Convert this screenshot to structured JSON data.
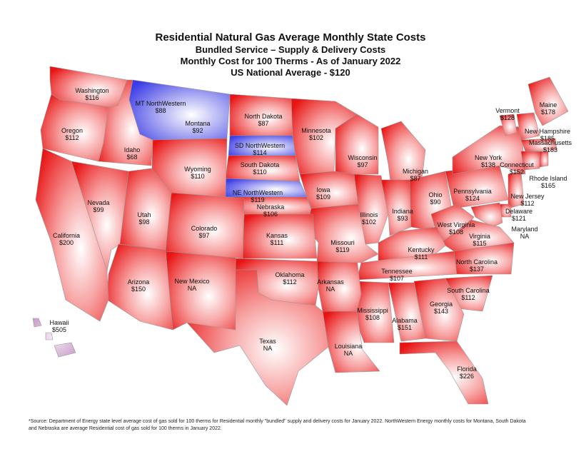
{
  "title": {
    "line1": "Residential Natural Gas Average Monthly State Costs",
    "line2": "Bundled Service – Supply & Delivery Costs",
    "line3": "Monthly Cost for 100 Therms - As of January 2022",
    "line4": "US National Average - $120"
  },
  "colors": {
    "state_cost": "#e81414",
    "northwestern": "#3a3ae6",
    "hawaii": "#d9b6d9"
  },
  "regions": [
    {
      "id": "washington",
      "name": "Washington",
      "value": "$116"
    },
    {
      "id": "oregon",
      "name": "Oregon",
      "value": "$112"
    },
    {
      "id": "idaho",
      "name": "Idaho",
      "value": "$68"
    },
    {
      "id": "mt-northwestern",
      "name": "MT NorthWestern",
      "value": "$88"
    },
    {
      "id": "montana",
      "name": "Montana",
      "value": "$92"
    },
    {
      "id": "north-dakota",
      "name": "North Dakota",
      "value": "$87"
    },
    {
      "id": "sd-northwestern",
      "name": "SD NorthWestern",
      "value": "$114"
    },
    {
      "id": "south-dakota",
      "name": "South Dakota",
      "value": "$110"
    },
    {
      "id": "ne-northwestern",
      "name": "NE NorthWestern",
      "value": "$119"
    },
    {
      "id": "nebraska",
      "name": "Nebraska",
      "value": "$106"
    },
    {
      "id": "minnesota",
      "name": "Minnesota",
      "value": "$102"
    },
    {
      "id": "wisconsin",
      "name": "Wisconsin",
      "value": "$97"
    },
    {
      "id": "michigan",
      "name": "Michigan",
      "value": "$87"
    },
    {
      "id": "wyoming",
      "name": "Wyoming",
      "value": "$110"
    },
    {
      "id": "iowa",
      "name": "Iowa",
      "value": "$109"
    },
    {
      "id": "illinois",
      "name": "Illinois",
      "value": "$102"
    },
    {
      "id": "indiana",
      "name": "Indiana",
      "value": "$93"
    },
    {
      "id": "ohio",
      "name": "Ohio",
      "value": "$90"
    },
    {
      "id": "pennsylvania",
      "name": "Pennsylvania",
      "value": "$124"
    },
    {
      "id": "new-york",
      "name": "New York",
      "value": "$138"
    },
    {
      "id": "vermont",
      "name": "Vermont",
      "value": "$128"
    },
    {
      "id": "maine",
      "name": "Maine",
      "value": "$178"
    },
    {
      "id": "new-hampshire",
      "name": "New Hampshire",
      "value": "$185"
    },
    {
      "id": "massachusetts",
      "name": "Massachusetts",
      "value": "$183"
    },
    {
      "id": "connecticut",
      "name": "Connecticut",
      "value": "$152"
    },
    {
      "id": "rhode-island",
      "name": "Rhode Island",
      "value": "$165"
    },
    {
      "id": "new-jersey",
      "name": "New Jersey",
      "value": "$112"
    },
    {
      "id": "delaware",
      "name": "Delaware",
      "value": "$121"
    },
    {
      "id": "maryland",
      "name": "Maryland",
      "value": "NA"
    },
    {
      "id": "nevada",
      "name": "Nevada",
      "value": "$99"
    },
    {
      "id": "utah",
      "name": "Utah",
      "value": "$98"
    },
    {
      "id": "colorado",
      "name": "Colorado",
      "value": "$97"
    },
    {
      "id": "kansas",
      "name": "Kansas",
      "value": "$111"
    },
    {
      "id": "missouri",
      "name": "Missouri",
      "value": "$119"
    },
    {
      "id": "kentucky",
      "name": "Kentucky",
      "value": "$111"
    },
    {
      "id": "west-virginia",
      "name": "West Virginia",
      "value": "$108"
    },
    {
      "id": "virginia",
      "name": "Virginia",
      "value": "$115"
    },
    {
      "id": "california",
      "name": "California",
      "value": "$200"
    },
    {
      "id": "arizona",
      "name": "Arizona",
      "value": "$150"
    },
    {
      "id": "new-mexico",
      "name": "New Mexico",
      "value": "NA"
    },
    {
      "id": "oklahoma",
      "name": "Oklahoma",
      "value": "$112"
    },
    {
      "id": "arkansas",
      "name": "Arkansas",
      "value": "NA"
    },
    {
      "id": "tennessee",
      "name": "Tennessee",
      "value": "$107"
    },
    {
      "id": "north-carolina",
      "name": "North Carolina",
      "value": "$137"
    },
    {
      "id": "south-carolina",
      "name": "South Carolina",
      "value": "$112"
    },
    {
      "id": "georgia",
      "name": "Georgia",
      "value": "$143"
    },
    {
      "id": "alabama",
      "name": "Alabama",
      "value": "$151"
    },
    {
      "id": "mississippi",
      "name": "Mississippi",
      "value": "$108"
    },
    {
      "id": "louisiana",
      "name": "Louisiana",
      "value": "NA"
    },
    {
      "id": "texas",
      "name": "Texas",
      "value": "NA"
    },
    {
      "id": "florida",
      "name": "Florida",
      "value": "$226"
    },
    {
      "id": "hawaii",
      "name": "Hawaii",
      "value": "$505"
    }
  ],
  "footnote": "*Source: Department of Energy state level average cost of gas sold for 100 therms for Residential monthly \"bundled\" supply and delivery costs for January 2022. NorthWestern Energy monthly costs for Montana, South Dakota and Nebraska are average Residential cost of gas sold for 100 therms in January 2022."
}
